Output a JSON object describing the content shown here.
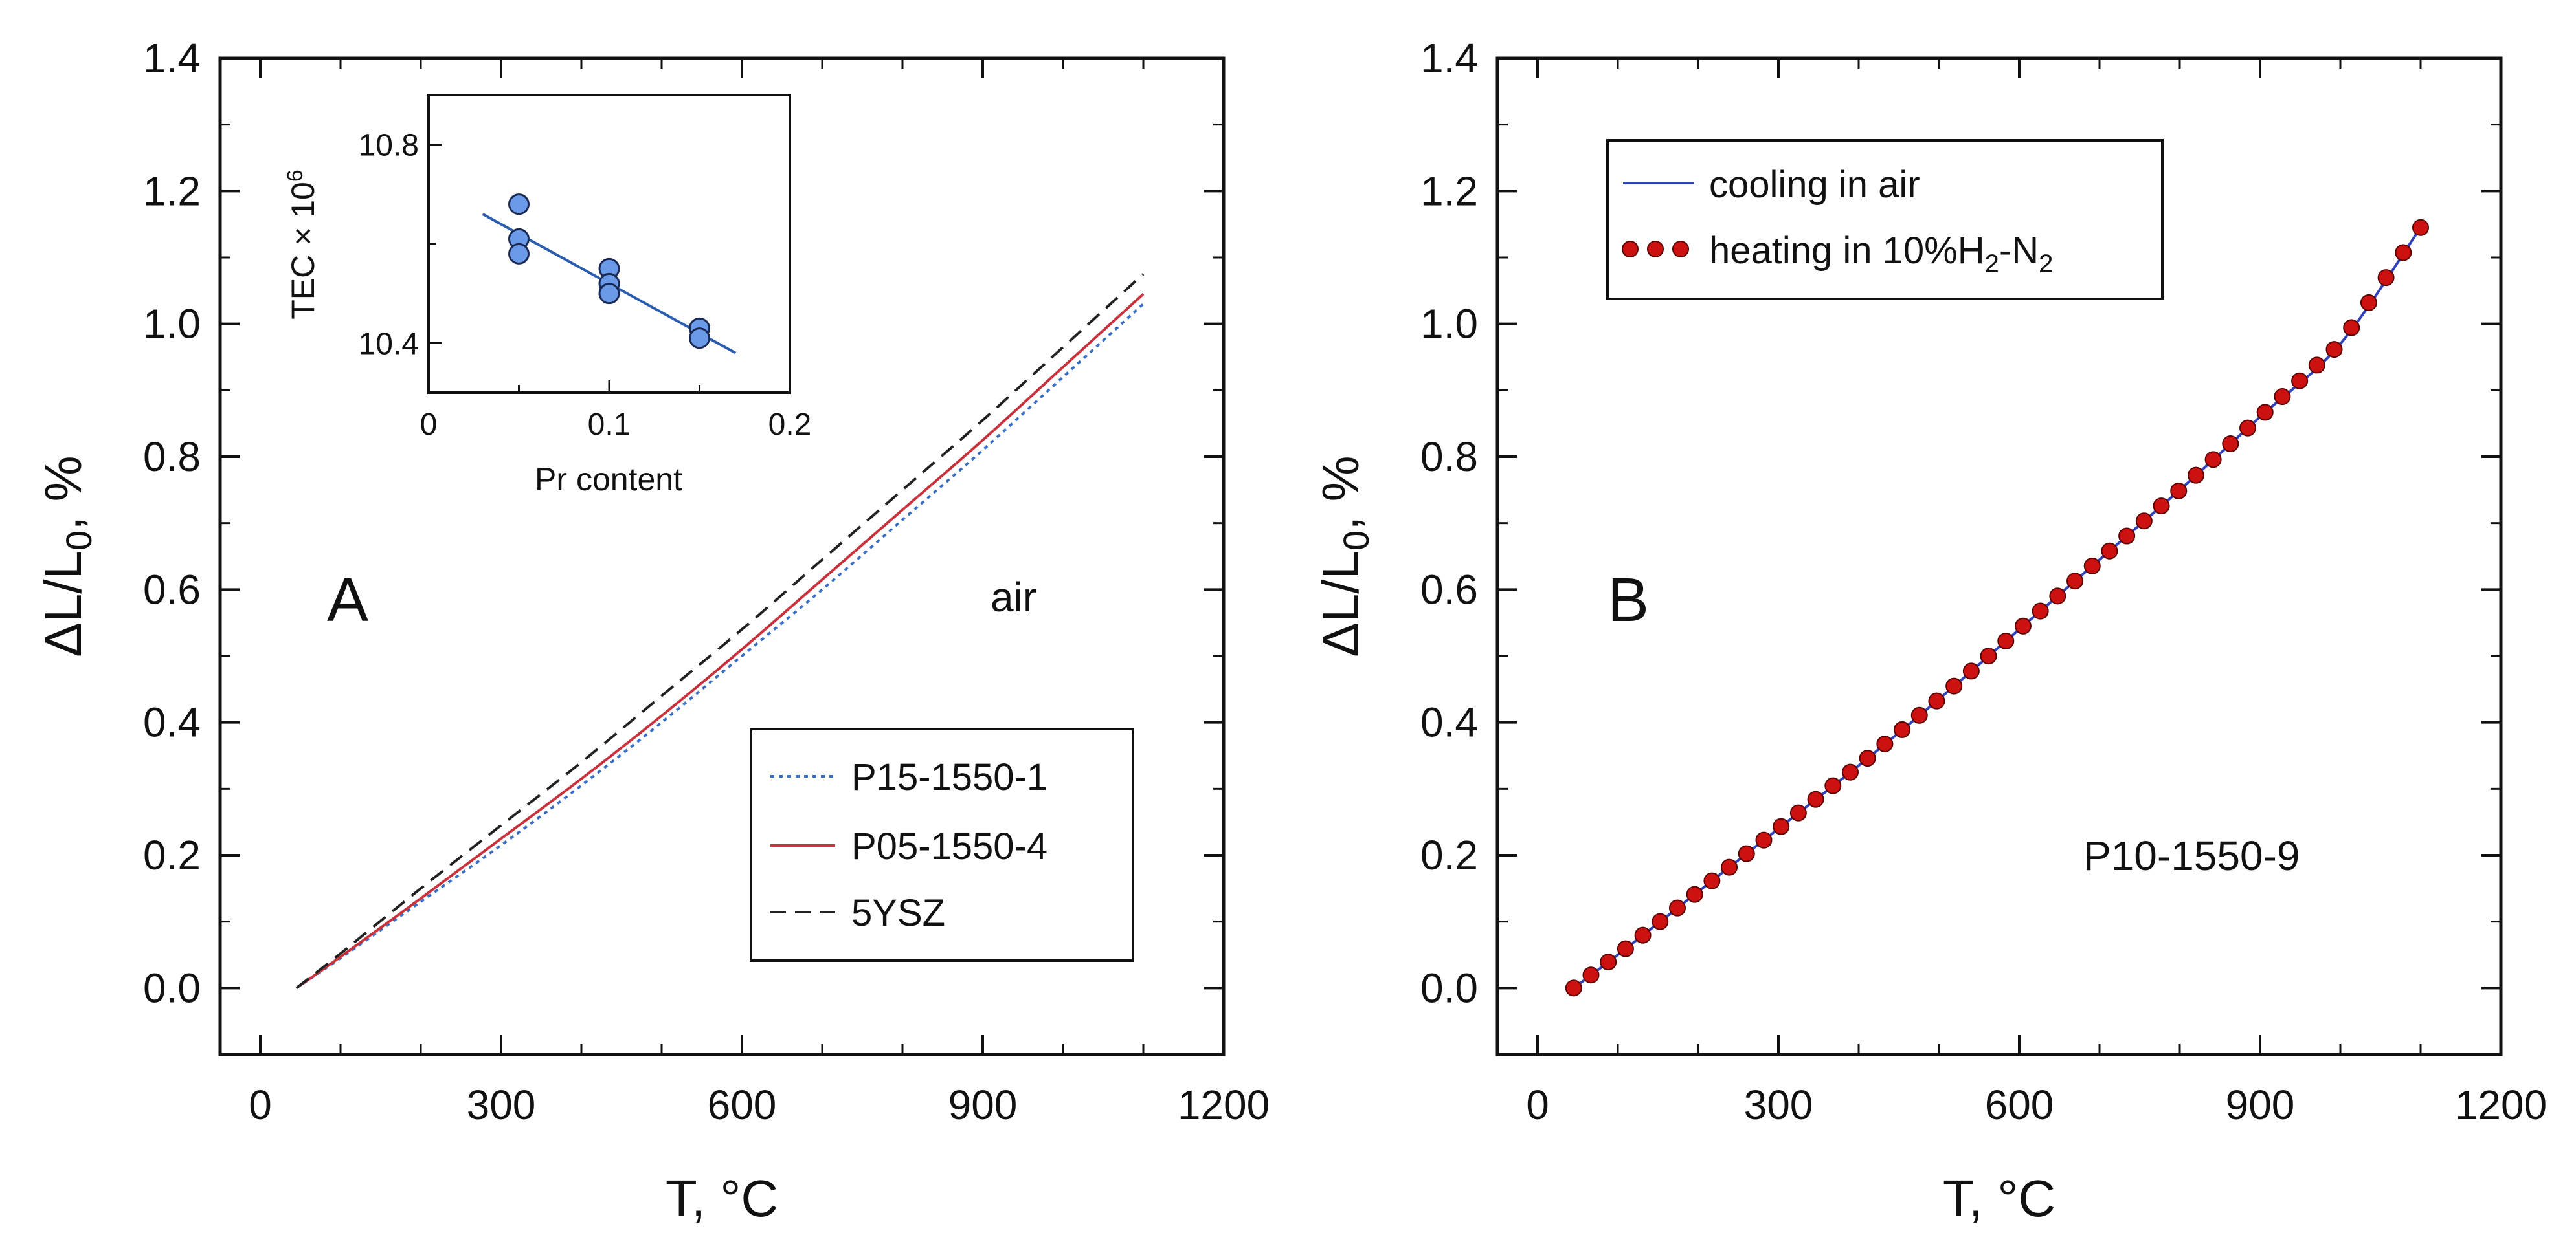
{
  "chart_data": [
    {
      "type": "line",
      "panel_label": "A",
      "annotation": "air",
      "xlabel": "T, °C",
      "ylabel_main": "ΔL/L",
      "ylabel_sub": "0",
      "ylabel_tail": ", %",
      "xlim": [
        -50,
        1200
      ],
      "ylim": [
        -0.1,
        1.4
      ],
      "xticks": [
        0,
        300,
        600,
        900,
        1200
      ],
      "xtick_labels": [
        "0",
        "300",
        "600",
        "900",
        "1200"
      ],
      "yticks": [
        0.0,
        0.2,
        0.4,
        0.6,
        0.8,
        1.0,
        1.2,
        1.4
      ],
      "ytick_labels": [
        "0.0",
        "0.2",
        "0.4",
        "0.6",
        "0.8",
        "1.0",
        "1.2",
        "1.4"
      ],
      "legend_position": "bottom-right",
      "series": [
        {
          "name": "P15-1550-1",
          "color": "#3a6fc4",
          "style": "dotted",
          "x": [
            45,
            100,
            200,
            300,
            400,
            500,
            600,
            700,
            800,
            900,
            1000,
            1100
          ],
          "y": [
            0.0,
            0.045,
            0.13,
            0.215,
            0.305,
            0.4,
            0.5,
            0.6,
            0.705,
            0.81,
            0.92,
            1.03
          ]
        },
        {
          "name": "P05-1550-4",
          "color": "#c8323c",
          "style": "solid",
          "x": [
            45,
            100,
            200,
            300,
            400,
            500,
            600,
            700,
            800,
            900,
            1000,
            1100
          ],
          "y": [
            0.0,
            0.047,
            0.135,
            0.225,
            0.315,
            0.41,
            0.51,
            0.615,
            0.72,
            0.825,
            0.935,
            1.045
          ]
        },
        {
          "name": "5YSZ",
          "color": "#222222",
          "style": "dashed",
          "x": [
            45,
            100,
            200,
            300,
            400,
            500,
            600,
            700,
            800,
            900,
            1000,
            1100
          ],
          "y": [
            0.0,
            0.052,
            0.15,
            0.245,
            0.34,
            0.44,
            0.54,
            0.645,
            0.75,
            0.855,
            0.965,
            1.075
          ]
        }
      ],
      "inset": {
        "type": "scatter",
        "xlabel": "Pr content",
        "ylabel": "TEC × 10",
        "ylabel_sup": "6",
        "xlim": [
          0,
          0.2
        ],
        "ylim": [
          10.3,
          10.9
        ],
        "xticks": [
          0,
          0.1,
          0.2
        ],
        "xtick_labels": [
          "0",
          "0.1",
          "0.2"
        ],
        "yticks": [
          10.4,
          10.8
        ],
        "ytick_labels": [
          "10.4",
          "10.8"
        ],
        "points": {
          "x": [
            0.05,
            0.05,
            0.05,
            0.1,
            0.1,
            0.1,
            0.15,
            0.15
          ],
          "y": [
            10.68,
            10.61,
            10.58,
            10.55,
            10.52,
            10.5,
            10.43,
            10.41
          ]
        },
        "fit": {
          "x": [
            0.03,
            0.17
          ],
          "y": [
            10.66,
            10.38
          ]
        },
        "point_color": "#6b9be8",
        "fit_color": "#2a5db0"
      }
    },
    {
      "type": "line",
      "panel_label": "B",
      "annotation": "P10-1550-9",
      "xlabel": "T, °C",
      "ylabel_main": "ΔL/L",
      "ylabel_sub": "0",
      "ylabel_tail": ", %",
      "xlim": [
        -50,
        1200
      ],
      "ylim": [
        -0.1,
        1.4
      ],
      "xticks": [
        0,
        300,
        600,
        900,
        1200
      ],
      "xtick_labels": [
        "0",
        "300",
        "600",
        "900",
        "1200"
      ],
      "yticks": [
        0.0,
        0.2,
        0.4,
        0.6,
        0.8,
        1.0,
        1.2,
        1.4
      ],
      "ytick_labels": [
        "0.0",
        "0.2",
        "0.4",
        "0.6",
        "0.8",
        "1.0",
        "1.2",
        "1.4"
      ],
      "legend_position": "top-left",
      "series": [
        {
          "name": "cooling in air",
          "color": "#3344bb",
          "style": "solid",
          "x": [
            45,
            100,
            200,
            300,
            400,
            500,
            600,
            700,
            800,
            900,
            1000,
            1100
          ],
          "y": [
            0.0,
            0.05,
            0.145,
            0.24,
            0.335,
            0.435,
            0.54,
            0.645,
            0.75,
            0.86,
            0.97,
            1.145
          ]
        },
        {
          "name_main": "heating in 10%H",
          "name_sub1": "2",
          "name_mid": "-N",
          "name_sub2": "2",
          "color": "#cc1111",
          "style": "markers",
          "x_start": 45,
          "x_end": 1100,
          "count": 50
        }
      ]
    }
  ]
}
